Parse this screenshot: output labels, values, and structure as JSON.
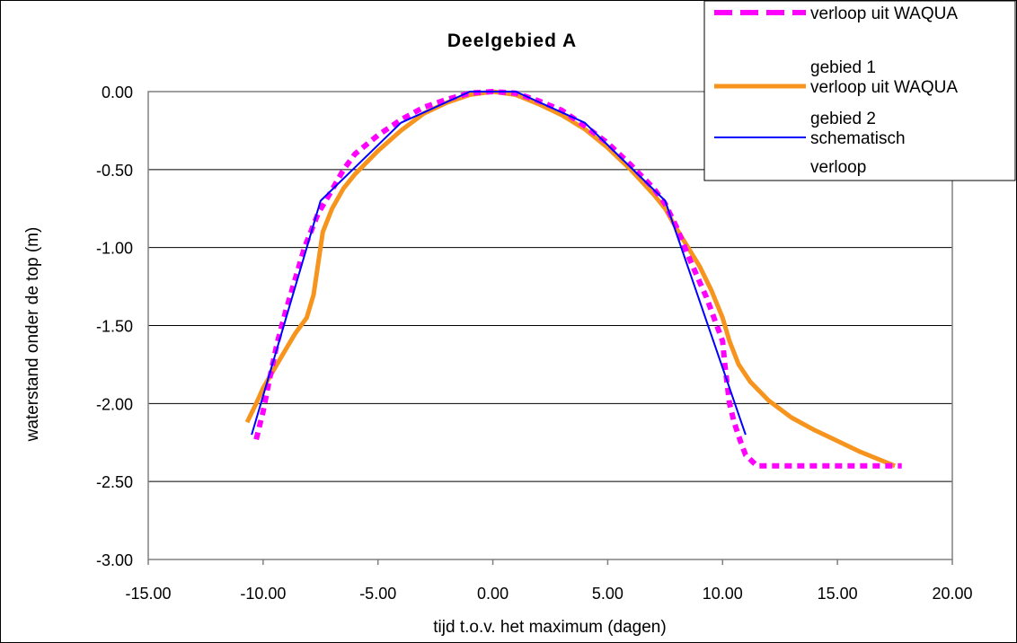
{
  "chart_data": {
    "type": "line",
    "title": "Deelgebied A",
    "xlabel": "tijd t.o.v. het maximum (dagen)",
    "ylabel": "waterstand onder de top (m)",
    "xlim": [
      -15,
      20
    ],
    "ylim": [
      -3,
      0
    ],
    "x_ticks": [
      "-15.00",
      "-10.00",
      "-5.00",
      "0.00",
      "5.00",
      "10.00",
      "15.00",
      "20.00"
    ],
    "y_ticks": [
      "0.00",
      "-0.50",
      "-1.00",
      "-1.50",
      "-2.00",
      "-2.50",
      "-3.00"
    ],
    "grid": "horizontal",
    "legend_position": "top-right",
    "series": [
      {
        "name": "verloop uit WAQUA gebied 1",
        "color": "#ff00ff",
        "style": "dashed",
        "points": [
          [
            -10.3,
            -2.23
          ],
          [
            -10.0,
            -2.05
          ],
          [
            -9.8,
            -1.9
          ],
          [
            -9.4,
            -1.62
          ],
          [
            -9.0,
            -1.4
          ],
          [
            -8.6,
            -1.2
          ],
          [
            -8.2,
            -1.0
          ],
          [
            -7.6,
            -0.78
          ],
          [
            -7.0,
            -0.63
          ],
          [
            -6.5,
            -0.5
          ],
          [
            -6.0,
            -0.4
          ],
          [
            -5.0,
            -0.28
          ],
          [
            -4.0,
            -0.18
          ],
          [
            -3.0,
            -0.1
          ],
          [
            -2.0,
            -0.05
          ],
          [
            -1.0,
            -0.01
          ],
          [
            0.0,
            0.0
          ],
          [
            1.0,
            -0.01
          ],
          [
            2.0,
            -0.06
          ],
          [
            3.0,
            -0.12
          ],
          [
            4.0,
            -0.22
          ],
          [
            5.0,
            -0.33
          ],
          [
            6.0,
            -0.47
          ],
          [
            7.0,
            -0.62
          ],
          [
            7.5,
            -0.72
          ],
          [
            8.0,
            -0.87
          ],
          [
            8.5,
            -1.05
          ],
          [
            9.0,
            -1.22
          ],
          [
            9.3,
            -1.32
          ],
          [
            9.7,
            -1.48
          ],
          [
            10.0,
            -1.6
          ],
          [
            10.1,
            -1.75
          ],
          [
            10.3,
            -2.0
          ],
          [
            10.5,
            -2.12
          ],
          [
            10.8,
            -2.25
          ],
          [
            11.0,
            -2.33
          ],
          [
            11.5,
            -2.4
          ],
          [
            12.0,
            -2.4
          ],
          [
            13.0,
            -2.4
          ],
          [
            14.0,
            -2.4
          ],
          [
            15.0,
            -2.4
          ],
          [
            16.0,
            -2.4
          ],
          [
            17.0,
            -2.4
          ],
          [
            17.8,
            -2.4
          ]
        ]
      },
      {
        "name": "verloop uit WAQUA gebied 2",
        "color": "#f7941d",
        "style": "solid",
        "points": [
          [
            -10.7,
            -2.12
          ],
          [
            -10.3,
            -2.0
          ],
          [
            -10.0,
            -1.9
          ],
          [
            -9.6,
            -1.8
          ],
          [
            -9.0,
            -1.65
          ],
          [
            -8.6,
            -1.55
          ],
          [
            -8.1,
            -1.45
          ],
          [
            -7.8,
            -1.3
          ],
          [
            -7.6,
            -1.1
          ],
          [
            -7.4,
            -0.9
          ],
          [
            -7.0,
            -0.75
          ],
          [
            -6.5,
            -0.62
          ],
          [
            -6.0,
            -0.53
          ],
          [
            -5.0,
            -0.38
          ],
          [
            -4.0,
            -0.25
          ],
          [
            -3.0,
            -0.14
          ],
          [
            -2.0,
            -0.07
          ],
          [
            -1.0,
            -0.02
          ],
          [
            0.0,
            0.0
          ],
          [
            1.0,
            -0.02
          ],
          [
            2.0,
            -0.08
          ],
          [
            3.0,
            -0.15
          ],
          [
            4.0,
            -0.24
          ],
          [
            5.0,
            -0.36
          ],
          [
            6.0,
            -0.5
          ],
          [
            7.0,
            -0.66
          ],
          [
            7.5,
            -0.75
          ],
          [
            8.0,
            -0.88
          ],
          [
            8.5,
            -1.0
          ],
          [
            9.0,
            -1.12
          ],
          [
            9.5,
            -1.27
          ],
          [
            10.0,
            -1.45
          ],
          [
            10.3,
            -1.6
          ],
          [
            10.7,
            -1.75
          ],
          [
            11.2,
            -1.86
          ],
          [
            12.0,
            -1.98
          ],
          [
            13.0,
            -2.09
          ],
          [
            14.0,
            -2.17
          ],
          [
            15.0,
            -2.24
          ],
          [
            16.0,
            -2.31
          ],
          [
            17.0,
            -2.37
          ],
          [
            17.5,
            -2.4
          ]
        ]
      },
      {
        "name": "schematisch verloop",
        "color": "#0000ff",
        "style": "solid",
        "points": [
          [
            -10.5,
            -2.2
          ],
          [
            -7.5,
            -0.7
          ],
          [
            -4.0,
            -0.2
          ],
          [
            -1.0,
            0.0
          ],
          [
            1.0,
            0.0
          ],
          [
            4.0,
            -0.2
          ],
          [
            7.5,
            -0.7
          ],
          [
            11.0,
            -2.2
          ]
        ]
      }
    ],
    "legend": [
      {
        "line1": "verloop uit WAQUA",
        "line2": "gebied 1"
      },
      {
        "line1": "verloop uit WAQUA",
        "line2": "gebied 2"
      },
      {
        "line1": "schematisch",
        "line2": "verloop"
      }
    ]
  }
}
